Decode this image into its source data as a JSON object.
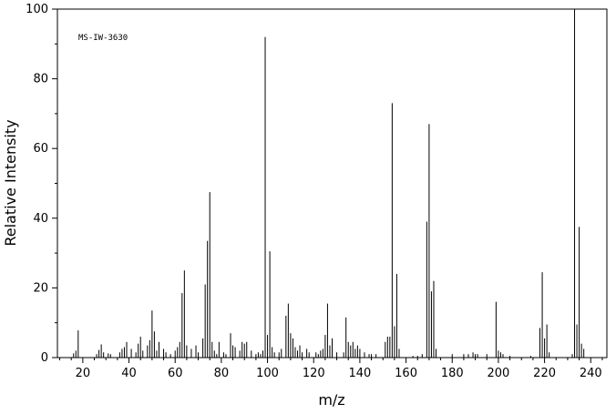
{
  "chart_data": {
    "type": "bar",
    "title": "",
    "annotation": "MS-IW-3630",
    "xlabel": "m/z",
    "ylabel": "Relative Intensity",
    "xlim": [
      9,
      247
    ],
    "ylim": [
      0,
      100
    ],
    "x_ticks": [
      20,
      40,
      60,
      80,
      100,
      120,
      140,
      160,
      180,
      200,
      220,
      240
    ],
    "y_ticks": [
      0,
      20,
      40,
      60,
      80,
      100
    ],
    "grid": false,
    "legend": "none",
    "bar_color": "#000000",
    "peaks": [
      [
        16,
        1.2
      ],
      [
        17,
        2
      ],
      [
        18,
        7.8
      ],
      [
        26,
        1
      ],
      [
        27,
        2.2
      ],
      [
        28,
        3.8
      ],
      [
        29,
        1.5
      ],
      [
        31,
        1.2
      ],
      [
        32,
        1
      ],
      [
        36,
        1.5
      ],
      [
        37,
        2.5
      ],
      [
        38,
        3
      ],
      [
        39,
        4.5
      ],
      [
        41,
        2.5
      ],
      [
        43,
        1.5
      ],
      [
        44,
        4
      ],
      [
        45,
        6
      ],
      [
        46,
        2
      ],
      [
        48,
        3.5
      ],
      [
        49,
        5
      ],
      [
        50,
        13.5
      ],
      [
        51,
        7.5
      ],
      [
        52,
        2
      ],
      [
        53,
        4.5
      ],
      [
        55,
        2.5
      ],
      [
        56,
        1.5
      ],
      [
        58,
        1
      ],
      [
        60,
        2
      ],
      [
        61,
        3
      ],
      [
        62,
        4.5
      ],
      [
        63,
        18.5
      ],
      [
        64,
        25
      ],
      [
        65,
        3.5
      ],
      [
        67,
        2.5
      ],
      [
        69,
        3.5
      ],
      [
        70,
        1.5
      ],
      [
        72,
        5.5
      ],
      [
        73,
        21
      ],
      [
        74,
        33.5
      ],
      [
        75,
        47.5
      ],
      [
        76,
        4.5
      ],
      [
        77,
        2
      ],
      [
        78,
        1
      ],
      [
        79,
        4.5
      ],
      [
        81,
        1.5
      ],
      [
        82,
        1
      ],
      [
        84,
        7
      ],
      [
        85,
        3.5
      ],
      [
        86,
        3
      ],
      [
        88,
        2
      ],
      [
        89,
        4.5
      ],
      [
        90,
        4
      ],
      [
        91,
        4.5
      ],
      [
        93,
        2
      ],
      [
        95,
        1
      ],
      [
        96,
        1.5
      ],
      [
        97,
        1
      ],
      [
        98,
        2
      ],
      [
        99,
        92
      ],
      [
        100,
        6.5
      ],
      [
        101,
        30.5
      ],
      [
        102,
        3
      ],
      [
        103,
        1.5
      ],
      [
        105,
        1.5
      ],
      [
        106,
        2.5
      ],
      [
        108,
        12
      ],
      [
        109,
        15.5
      ],
      [
        110,
        7
      ],
      [
        111,
        5.5
      ],
      [
        112,
        3
      ],
      [
        113,
        2
      ],
      [
        114,
        3.5
      ],
      [
        115,
        1.5
      ],
      [
        117,
        2.5
      ],
      [
        118,
        1.5
      ],
      [
        121,
        1.5
      ],
      [
        122,
        1
      ],
      [
        123,
        2
      ],
      [
        124,
        2.5
      ],
      [
        125,
        6.5
      ],
      [
        126,
        15.5
      ],
      [
        127,
        3.5
      ],
      [
        128,
        5.5
      ],
      [
        130,
        1.5
      ],
      [
        133,
        1.5
      ],
      [
        134,
        11.5
      ],
      [
        135,
        4.5
      ],
      [
        136,
        3.5
      ],
      [
        137,
        4.5
      ],
      [
        138,
        2.5
      ],
      [
        139,
        3.5
      ],
      [
        140,
        2.5
      ],
      [
        142,
        1.5
      ],
      [
        144,
        1
      ],
      [
        145,
        1
      ],
      [
        147,
        1
      ],
      [
        151,
        4.5
      ],
      [
        152,
        6
      ],
      [
        153,
        6
      ],
      [
        154,
        73
      ],
      [
        155,
        9
      ],
      [
        156,
        24
      ],
      [
        157,
        2.5
      ],
      [
        163,
        0.5
      ],
      [
        165,
        0.5
      ],
      [
        167,
        1
      ],
      [
        169,
        39
      ],
      [
        170,
        67
      ],
      [
        171,
        19
      ],
      [
        172,
        22
      ],
      [
        173,
        2.5
      ],
      [
        180,
        1
      ],
      [
        185,
        1
      ],
      [
        187,
        1
      ],
      [
        189,
        1.5
      ],
      [
        190,
        1
      ],
      [
        191,
        1
      ],
      [
        195,
        1
      ],
      [
        199,
        16
      ],
      [
        200,
        2
      ],
      [
        201,
        1.5
      ],
      [
        202,
        1
      ],
      [
        205,
        0.5
      ],
      [
        214,
        0.5
      ],
      [
        218,
        8.5
      ],
      [
        219,
        24.5
      ],
      [
        220,
        5.5
      ],
      [
        221,
        9.5
      ],
      [
        222,
        1.5
      ],
      [
        232,
        1
      ],
      [
        233,
        100
      ],
      [
        234,
        9.5
      ],
      [
        235,
        37.5
      ],
      [
        236,
        4
      ],
      [
        237,
        2.5
      ]
    ]
  }
}
